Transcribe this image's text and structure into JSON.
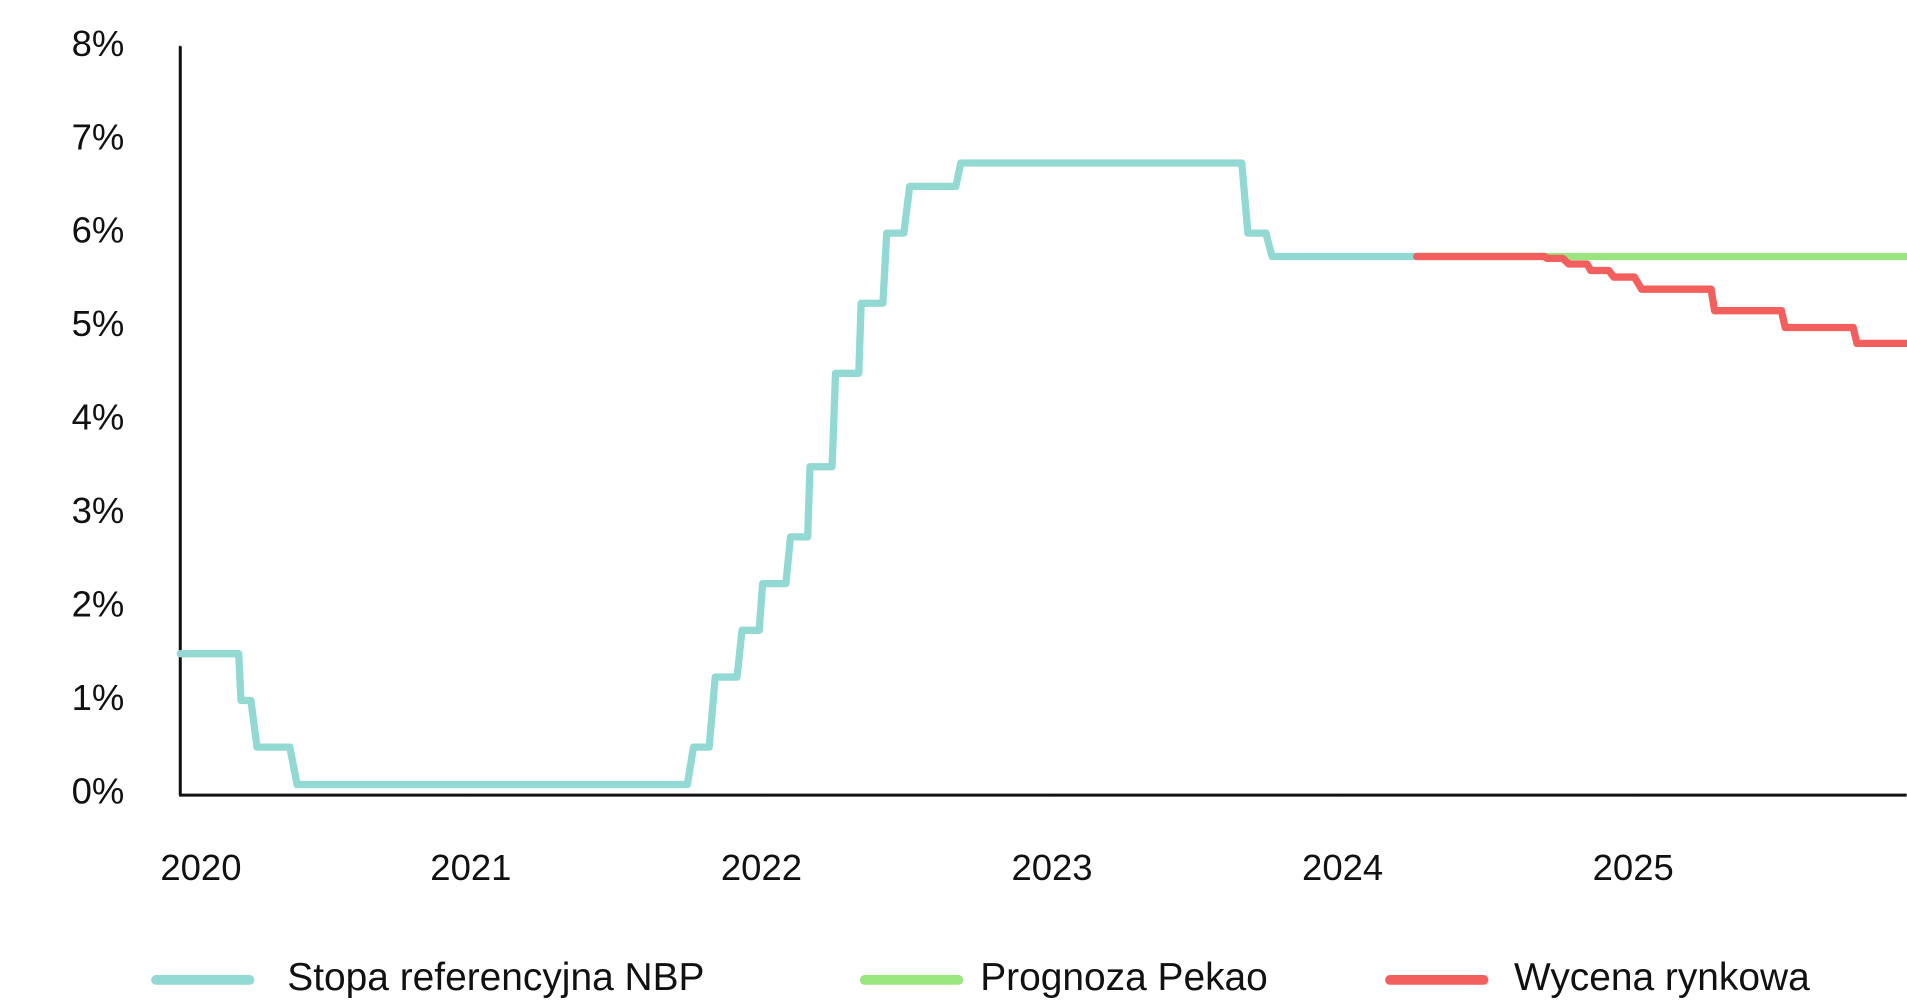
{
  "chart_data": {
    "type": "line",
    "step": true,
    "xlim": [
      2020,
      2025.941
    ],
    "xticks": [
      2020,
      2021,
      2022,
      2023,
      2024,
      2025
    ],
    "ylim": [
      0,
      8
    ],
    "yticks": [
      {
        "value": 0,
        "label": "0%"
      },
      {
        "value": 1,
        "label": "1%"
      },
      {
        "value": 2,
        "label": "2%"
      },
      {
        "value": 3,
        "label": "3%"
      },
      {
        "value": 4,
        "label": "4%"
      },
      {
        "value": 5,
        "label": "5%"
      },
      {
        "value": 6,
        "label": "6%"
      },
      {
        "value": 7,
        "label": "7%"
      },
      {
        "value": 8,
        "label": "8%"
      }
    ],
    "grid": false,
    "legend": "bottom",
    "series": [
      {
        "name": "Stopa referencyjna NBP",
        "color": "#93d9d3",
        "x": [
          2020.0,
          2020.201,
          2020.209,
          2020.243,
          2020.264,
          2020.377,
          2020.402,
          2021.745,
          2021.766,
          2021.82,
          2021.841,
          2021.916,
          2021.933,
          2021.992,
          2022.004,
          2022.084,
          2022.1,
          2022.159,
          2022.167,
          2022.243,
          2022.255,
          2022.335,
          2022.343,
          2022.418,
          2022.431,
          2022.49,
          2022.51,
          2022.669,
          2022.686,
          2023.653,
          2023.674,
          2023.736,
          2023.757,
          2024.255
        ],
        "values": [
          1.5,
          1.5,
          1.0,
          1.0,
          0.5,
          0.5,
          0.1,
          0.1,
          0.5,
          0.5,
          1.25,
          1.25,
          1.75,
          1.75,
          2.25,
          2.25,
          2.75,
          2.75,
          3.5,
          3.5,
          4.5,
          4.5,
          5.25,
          5.25,
          6.0,
          6.0,
          6.5,
          6.5,
          6.75,
          6.75,
          6.0,
          6.0,
          5.75,
          5.75
        ]
      },
      {
        "name": "Prognoza Pekao",
        "color": "#99e57e",
        "x": [
          2024.255,
          2025.941
        ],
        "values": [
          5.75,
          5.75
        ]
      },
      {
        "name": "Wycena rynkowa",
        "color": "#f25f5c",
        "x": [
          2024.255,
          2024.695,
          2024.703,
          2024.757,
          2024.778,
          2024.841,
          2024.854,
          2024.916,
          2024.933,
          2025.004,
          2025.029,
          2025.268,
          2025.28,
          2025.51,
          2025.523,
          2025.757,
          2025.77,
          2025.941
        ],
        "values": [
          5.75,
          5.75,
          5.73,
          5.73,
          5.67,
          5.67,
          5.6,
          5.6,
          5.53,
          5.53,
          5.4,
          5.4,
          5.17,
          5.17,
          4.99,
          4.99,
          4.82,
          4.82
        ]
      }
    ]
  }
}
